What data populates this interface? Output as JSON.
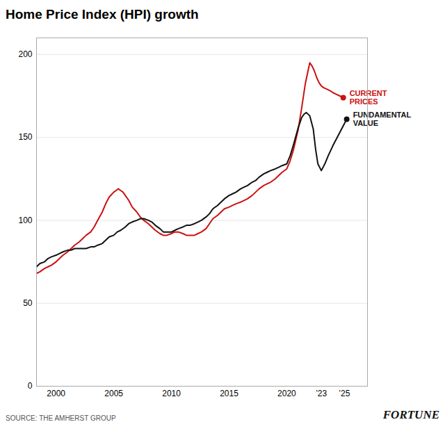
{
  "chart_data": {
    "type": "line",
    "title": "Home Price Index (HPI) growth",
    "caption": "SOURCE: THE AMHERST GROUP",
    "credit": "FORTUNE",
    "xlim": [
      1998.3,
      2027.0
    ],
    "xticks": [
      2000,
      2005,
      2010,
      2015,
      2020,
      {
        "value": 2023,
        "label": "’23"
      },
      {
        "value": 2025,
        "label": "’25"
      }
    ],
    "ylim": [
      0,
      210
    ],
    "yticks": [
      0,
      50,
      100,
      150,
      200
    ],
    "grid": "y",
    "series": [
      {
        "color": "#cc1111",
        "x": [
          1998.3,
          1998.6,
          1999.0,
          1999.3,
          1999.6,
          2000.0,
          2000.3,
          2000.6,
          2001.0,
          2001.3,
          2001.6,
          2002.0,
          2002.3,
          2002.6,
          2003.0,
          2003.3,
          2003.6,
          2004.0,
          2004.3,
          2004.6,
          2005.0,
          2005.2,
          2005.4,
          2005.6,
          2005.8,
          2006.0,
          2006.3,
          2006.6,
          2007.0,
          2007.3,
          2007.6,
          2008.0,
          2008.3,
          2008.6,
          2009.0,
          2009.3,
          2009.6,
          2010.0,
          2010.3,
          2010.6,
          2011.0,
          2011.3,
          2011.6,
          2012.0,
          2012.3,
          2012.6,
          2013.0,
          2013.3,
          2013.6,
          2014.0,
          2014.3,
          2014.6,
          2015.0,
          2015.3,
          2015.6,
          2016.0,
          2016.3,
          2016.6,
          2017.0,
          2017.3,
          2017.6,
          2018.0,
          2018.3,
          2018.6,
          2019.0,
          2019.3,
          2019.6,
          2020.0,
          2020.3,
          2020.6,
          2021.0,
          2021.3,
          2021.6,
          2021.9,
          2022.0,
          2022.2,
          2022.4,
          2022.6,
          2022.8,
          2023.0,
          2023.2,
          2023.5,
          2023.8,
          2024.0,
          2024.3,
          2024.6,
          2024.9
        ],
        "values": [
          68,
          69,
          71,
          72,
          73,
          75,
          77,
          79,
          81,
          83,
          85,
          87,
          89,
          91,
          93,
          96,
          100,
          105,
          110,
          114,
          117,
          118,
          119,
          118,
          117,
          115,
          112,
          108,
          105,
          102,
          100,
          98,
          96,
          94,
          92,
          91,
          91,
          92,
          93,
          93,
          92,
          91,
          91,
          91,
          92,
          93,
          95,
          98,
          101,
          103,
          105,
          107,
          108,
          109,
          110,
          111,
          112,
          113,
          115,
          117,
          119,
          121,
          122,
          123,
          125,
          127,
          129,
          131,
          136,
          143,
          155,
          168,
          182,
          192,
          195,
          193,
          190,
          186,
          183,
          181,
          180,
          179,
          178,
          177,
          176,
          175,
          174
        ]
      },
      {
        "color": "#111111",
        "x": [
          1998.3,
          1998.6,
          1999.0,
          1999.3,
          1999.6,
          2000.0,
          2000.3,
          2000.6,
          2001.0,
          2001.3,
          2001.6,
          2002.0,
          2002.3,
          2002.6,
          2003.0,
          2003.3,
          2003.6,
          2004.0,
          2004.3,
          2004.6,
          2005.0,
          2005.3,
          2005.6,
          2006.0,
          2006.3,
          2006.6,
          2007.0,
          2007.3,
          2007.6,
          2008.0,
          2008.3,
          2008.6,
          2009.0,
          2009.3,
          2009.6,
          2010.0,
          2010.3,
          2010.6,
          2011.0,
          2011.3,
          2011.6,
          2012.0,
          2012.3,
          2012.6,
          2013.0,
          2013.3,
          2013.6,
          2014.0,
          2014.3,
          2014.6,
          2015.0,
          2015.3,
          2015.6,
          2016.0,
          2016.3,
          2016.6,
          2017.0,
          2017.3,
          2017.6,
          2018.0,
          2018.3,
          2018.6,
          2019.0,
          2019.3,
          2019.6,
          2020.0,
          2020.3,
          2020.6,
          2021.0,
          2021.3,
          2021.5,
          2021.7,
          2022.0,
          2022.3,
          2022.5,
          2022.7,
          2023.0,
          2023.3,
          2023.6,
          2024.0,
          2024.3,
          2024.6,
          2024.9,
          2025.2
        ],
        "values": [
          72,
          74,
          75,
          77,
          78,
          79,
          80,
          81,
          82,
          82,
          83,
          83,
          83,
          83,
          84,
          84,
          85,
          86,
          88,
          90,
          91,
          93,
          94,
          96,
          98,
          99,
          100,
          101,
          101,
          100,
          99,
          97,
          95,
          93,
          93,
          93,
          94,
          95,
          96,
          97,
          97,
          98,
          99,
          100,
          102,
          104,
          107,
          109,
          111,
          113,
          115,
          116,
          117,
          119,
          120,
          121,
          123,
          124,
          126,
          128,
          129,
          130,
          131,
          132,
          133,
          134,
          139,
          146,
          156,
          162,
          164,
          165,
          163,
          155,
          143,
          134,
          130,
          134,
          139,
          145,
          149,
          153,
          157,
          161
        ]
      }
    ],
    "annotations": [
      {
        "text": "CURRENT\nPRICES",
        "x": 2024.9,
        "y": 174,
        "color": "#cc1111",
        "marker": "circle"
      },
      {
        "text": "FUNDAMENTAL\nVALUE",
        "x": 2025.2,
        "y": 161,
        "color": "#111111",
        "marker": "circle"
      }
    ]
  }
}
